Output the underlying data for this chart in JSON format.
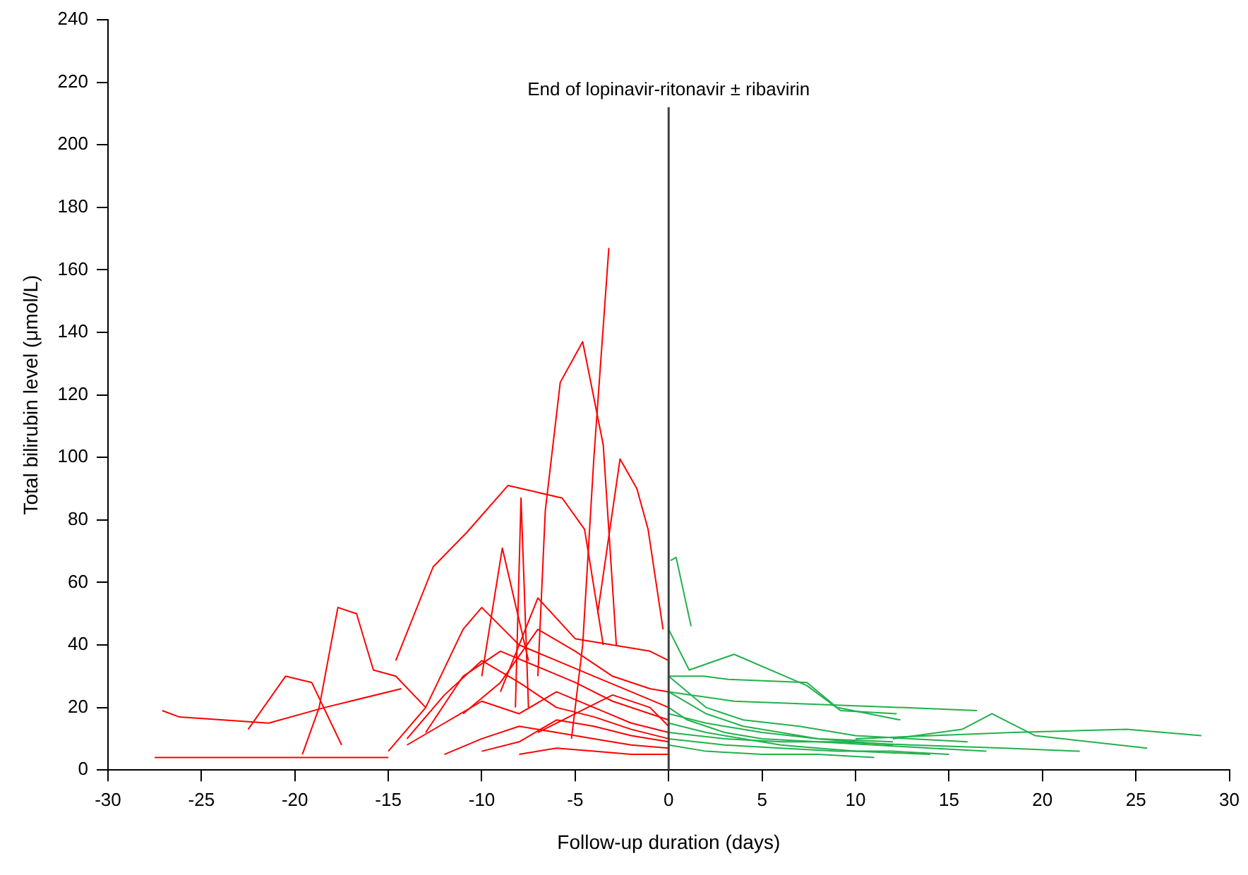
{
  "chart_data": {
    "type": "line",
    "xlabel": "Follow-up duration (days)",
    "ylabel": "Total bilirubin level (μmol/L)",
    "xlim": [
      -30,
      30
    ],
    "xticks": [
      -30,
      -25,
      -20,
      -15,
      -10,
      -5,
      0,
      5,
      10,
      15,
      20,
      25,
      30
    ],
    "ylim": [
      0,
      240
    ],
    "yticks": [
      0,
      20,
      40,
      60,
      80,
      100,
      120,
      140,
      160,
      180,
      200,
      220,
      240
    ],
    "grid": false,
    "legend": false,
    "marker": "none",
    "line_style": "solid",
    "ref_lines": [
      {
        "axis": "x",
        "value": 0,
        "label": "End of lopinavir-ritonavir ± ribavirin",
        "color": "#404040"
      }
    ],
    "series": [
      {
        "color": "#ff0000",
        "x": [
          -5.2,
          -4.6,
          -4,
          -3.2
        ],
        "values": [
          10,
          40,
          100,
          167
        ]
      },
      {
        "color": "#ff0000",
        "x": [
          -7,
          -6.6,
          -5.8,
          -4.6,
          -3.5,
          -2.8
        ],
        "values": [
          30,
          83,
          124,
          137,
          104,
          40
        ]
      },
      {
        "color": "#ff0000",
        "x": [
          -3.8,
          -2.6,
          -1.7,
          -1.1,
          -0.3
        ],
        "values": [
          50,
          99.5,
          90,
          77,
          45
        ]
      },
      {
        "color": "#ff0000",
        "x": [
          -14.6,
          -12.6,
          -10.8,
          -8.6,
          -5.7,
          -4.5,
          -3.5
        ],
        "values": [
          35,
          65,
          76,
          91,
          87,
          77,
          40
        ]
      },
      {
        "color": "#ff0000",
        "x": [
          -19.6,
          -18.7,
          -17.7,
          -16.7,
          -15.8,
          -14.6,
          -13
        ],
        "values": [
          5,
          20,
          52,
          50,
          32,
          30,
          20
        ]
      },
      {
        "color": "#ff0000",
        "x": [
          -22.5,
          -20.5,
          -19.1,
          -17.5
        ],
        "values": [
          13,
          30,
          28,
          8
        ]
      },
      {
        "color": "#ff0000",
        "x": [
          -27.1,
          -26.2,
          -21.4,
          -18.4,
          -14.3
        ],
        "values": [
          19,
          17,
          15,
          20,
          26
        ]
      },
      {
        "color": "#ff0000",
        "x": [
          -27.5,
          -15
        ],
        "values": [
          4,
          4
        ]
      },
      {
        "color": "#ff0000",
        "x": [
          -8.2,
          -7.9,
          -7.5
        ],
        "values": [
          20,
          87,
          20
        ]
      },
      {
        "color": "#ff0000",
        "x": [
          -10,
          -8.9,
          -7.5
        ],
        "values": [
          30,
          71,
          35
        ]
      },
      {
        "color": "#ff0000",
        "x": [
          -14,
          -12,
          -10,
          -8,
          -6,
          -4,
          -2,
          0
        ],
        "values": [
          8,
          15,
          22,
          18,
          25,
          20,
          15,
          12
        ]
      },
      {
        "color": "#ff0000",
        "x": [
          -13,
          -11,
          -9,
          -7,
          -5,
          -3,
          -1,
          0
        ],
        "values": [
          12,
          30,
          38,
          33,
          28,
          22,
          18,
          16
        ]
      },
      {
        "color": "#ff0000",
        "x": [
          -12,
          -10,
          -8,
          -6,
          -4,
          -2,
          0
        ],
        "values": [
          5,
          10,
          14,
          12,
          10,
          8,
          7
        ]
      },
      {
        "color": "#ff0000",
        "x": [
          -15,
          -13,
          -11,
          -10,
          -8,
          -6,
          -4,
          -2,
          0
        ],
        "values": [
          6,
          20,
          45,
          52,
          40,
          35,
          30,
          25,
          20
        ]
      },
      {
        "color": "#ff0000",
        "x": [
          -11,
          -9,
          -7,
          -5,
          -3,
          -1,
          0
        ],
        "values": [
          18,
          28,
          45,
          38,
          30,
          26,
          25
        ]
      },
      {
        "color": "#ff0000",
        "x": [
          -10,
          -8,
          -6,
          -4,
          -2,
          0
        ],
        "values": [
          6,
          9,
          16,
          14,
          11,
          9
        ]
      },
      {
        "color": "#ff0000",
        "x": [
          -9,
          -7,
          -5,
          -3,
          -1,
          0
        ],
        "values": [
          25,
          55,
          42,
          40,
          38,
          35
        ]
      },
      {
        "color": "#ff0000",
        "x": [
          -14,
          -12,
          -10,
          -8,
          -6,
          -4,
          -2,
          0
        ],
        "values": [
          10,
          24,
          35,
          28,
          20,
          17,
          13,
          10
        ]
      },
      {
        "color": "#ff0000",
        "x": [
          -7,
          -5,
          -3,
          -1,
          0
        ],
        "values": [
          12,
          18,
          24,
          20,
          14
        ]
      },
      {
        "color": "#ff0000",
        "x": [
          -8,
          -6,
          -4,
          -2,
          0
        ],
        "values": [
          5,
          7,
          6,
          5,
          5
        ]
      },
      {
        "color": "#22b14c",
        "x": [
          0.1,
          0.4,
          1.2
        ],
        "values": [
          67,
          68,
          46
        ]
      },
      {
        "color": "#22b14c",
        "x": [
          0,
          1.1,
          3.5,
          7.4,
          9.2,
          12.2
        ],
        "values": [
          45,
          32,
          37,
          27,
          19,
          18
        ]
      },
      {
        "color": "#22b14c",
        "x": [
          0,
          1.9,
          3.2,
          7.4,
          9,
          12.4
        ],
        "values": [
          30,
          30,
          29,
          28,
          20,
          16
        ]
      },
      {
        "color": "#22b14c",
        "x": [
          0,
          3.5,
          12.4,
          16.5
        ],
        "values": [
          25,
          22,
          20,
          19
        ]
      },
      {
        "color": "#22b14c",
        "x": [
          10,
          18.4,
          24.5,
          28.5
        ],
        "values": [
          10,
          12,
          13,
          11
        ]
      },
      {
        "color": "#22b14c",
        "x": [
          12,
          15.7,
          17.3,
          19.6,
          25.6
        ],
        "values": [
          10,
          13,
          18,
          11,
          7
        ]
      },
      {
        "color": "#22b14c",
        "x": [
          0,
          2,
          4,
          6,
          8,
          10,
          12
        ],
        "values": [
          25,
          18,
          14,
          12,
          10,
          9,
          8
        ]
      },
      {
        "color": "#22b14c",
        "x": [
          0,
          2,
          4,
          6,
          8,
          10,
          14
        ],
        "values": [
          15,
          12,
          10,
          8,
          7,
          6,
          5
        ]
      },
      {
        "color": "#22b14c",
        "x": [
          0,
          3,
          6,
          9,
          12,
          15
        ],
        "values": [
          10,
          8,
          7,
          6,
          6,
          5
        ]
      },
      {
        "color": "#22b14c",
        "x": [
          0,
          1,
          3,
          5,
          8,
          11,
          14,
          17
        ],
        "values": [
          20,
          16,
          12,
          10,
          9,
          8,
          7,
          6
        ]
      },
      {
        "color": "#22b14c",
        "x": [
          0,
          2,
          5,
          8,
          11
        ],
        "values": [
          8,
          6,
          5,
          5,
          4
        ]
      },
      {
        "color": "#22b14c",
        "x": [
          0,
          2,
          4,
          7,
          10,
          13,
          16
        ],
        "values": [
          30,
          20,
          16,
          14,
          11,
          10,
          9
        ]
      },
      {
        "color": "#22b14c",
        "x": [
          0,
          3,
          6,
          9,
          13,
          18,
          22
        ],
        "values": [
          12,
          10,
          9,
          9,
          8,
          7,
          6
        ]
      },
      {
        "color": "#22b14c",
        "x": [
          0,
          2,
          5,
          8,
          12
        ],
        "values": [
          18,
          15,
          12,
          10,
          9
        ]
      }
    ]
  }
}
